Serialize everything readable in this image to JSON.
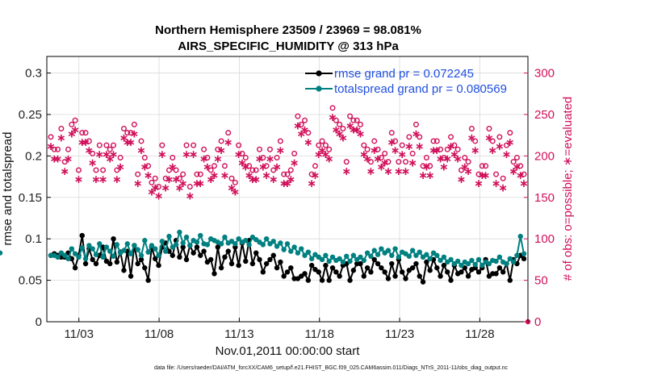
{
  "colors": {
    "rmse": "#000000",
    "spread": "#008080",
    "obs": "#d0105a",
    "legend_text": "#1f4fe0"
  },
  "chart_data": {
    "type": "line",
    "title": "Northern Hemisphere 23509 / 23969 = 98.081%",
    "subtitle": "AIRS_SPECIFIC_HUMIDITY @ 313 hPa",
    "xlabel": "Nov.01,2011 00:00:00 start",
    "ylabel": "rmse and totalspread",
    "ylabel_right": "# of obs: o=possible; ∗=evaluated",
    "footer": "data file: /Users/raeder/DAI/ATM_forcXX/CAM6_setup/f.e21.FHIST_BGC.f09_025.CAM6assim.011/Diags_NTrS_2011-11/obs_diag_output.nc",
    "xlim": [
      1.0,
      31.0
    ],
    "ylim": [
      0,
      0.32
    ],
    "ylim_right": [
      0,
      320
    ],
    "x_ticks": [
      3,
      8,
      13,
      18,
      23,
      28
    ],
    "x_tick_labels": [
      "11/03",
      "11/08",
      "11/13",
      "11/18",
      "11/23",
      "11/28"
    ],
    "y_ticks": [
      0,
      0.05,
      0.1,
      0.15,
      0.2,
      0.25,
      0.3
    ],
    "y_tick_labels": [
      "0",
      "0.05",
      "0.1",
      "0.15",
      "0.2",
      "0.25",
      "0.3"
    ],
    "y_ticks_right": [
      0,
      50,
      100,
      150,
      200,
      250,
      300
    ],
    "y_tick_labels_right": [
      "0",
      "50",
      "100",
      "150",
      "200",
      "250",
      "300"
    ],
    "legend_position": "top-right",
    "series": [
      {
        "name": "rmse grand pr = 0.072245",
        "values": [
          0.08,
          0.082,
          0.08,
          0.078,
          0.078,
          0.083,
          0.076,
          0.065,
          0.08,
          0.104,
          0.07,
          0.088,
          0.075,
          0.07,
          0.08,
          0.09,
          0.073,
          0.07,
          0.1,
          0.072,
          0.084,
          0.062,
          0.085,
          0.055,
          0.092,
          0.07,
          0.075,
          0.065,
          0.05,
          0.09,
          0.076,
          0.068,
          0.09,
          0.095,
          0.085,
          0.08,
          0.098,
          0.078,
          0.09,
          0.075,
          0.092,
          0.083,
          0.09,
          0.08,
          0.085,
          0.072,
          0.075,
          0.058,
          0.09,
          0.065,
          0.078,
          0.085,
          0.07,
          0.09,
          0.068,
          0.095,
          0.073,
          0.098,
          0.07,
          0.083,
          0.075,
          0.06,
          0.07,
          0.075,
          0.08,
          0.065,
          0.072,
          0.055,
          0.06,
          0.065,
          0.052,
          0.052,
          0.055,
          0.058,
          0.05,
          0.068,
          0.063,
          0.06,
          0.05,
          0.068,
          0.05,
          0.065,
          0.06,
          0.055,
          0.068,
          0.07,
          0.05,
          0.062,
          0.07,
          0.07,
          0.055,
          0.065,
          0.06,
          0.075,
          0.07,
          0.065,
          0.06,
          0.052,
          0.07,
          0.055,
          0.075,
          0.06,
          0.052,
          0.062,
          0.065,
          0.07,
          0.055,
          0.048,
          0.072,
          0.062,
          0.075,
          0.065,
          0.055,
          0.068,
          0.06,
          0.05,
          0.068,
          0.058,
          0.06,
          0.065,
          0.055,
          0.063,
          0.065,
          0.06,
          0.065,
          0.075,
          0.055,
          0.058,
          0.058,
          0.065,
          0.06,
          0.07,
          0.05,
          0.075,
          0.07,
          0.08,
          0.076
        ]
      },
      {
        "name": "totalspread grand pr = 0.080569",
        "values": [
          0.08,
          0.08,
          0.078,
          0.083,
          0.08,
          0.076,
          0.088,
          0.082,
          0.078,
          0.089,
          0.076,
          0.092,
          0.088,
          0.081,
          0.094,
          0.078,
          0.09,
          0.085,
          0.079,
          0.093,
          0.083,
          0.086,
          0.094,
          0.082,
          0.092,
          0.087,
          0.08,
          0.098,
          0.084,
          0.092,
          0.088,
          0.08,
          0.097,
          0.085,
          0.103,
          0.09,
          0.093,
          0.108,
          0.095,
          0.102,
          0.092,
          0.098,
          0.096,
          0.104,
          0.094,
          0.093,
          0.1,
          0.098,
          0.096,
          0.094,
          0.102,
          0.095,
          0.097,
          0.094,
          0.1,
          0.096,
          0.098,
          0.093,
          0.102,
          0.099,
          0.096,
          0.093,
          0.1,
          0.094,
          0.097,
          0.091,
          0.095,
          0.087,
          0.094,
          0.085,
          0.09,
          0.083,
          0.088,
          0.08,
          0.084,
          0.076,
          0.081,
          0.078,
          0.075,
          0.08,
          0.073,
          0.078,
          0.074,
          0.076,
          0.072,
          0.079,
          0.073,
          0.08,
          0.075,
          0.078,
          0.074,
          0.083,
          0.079,
          0.086,
          0.081,
          0.088,
          0.083,
          0.086,
          0.08,
          0.088,
          0.078,
          0.084,
          0.082,
          0.079,
          0.086,
          0.08,
          0.084,
          0.078,
          0.081,
          0.076,
          0.083,
          0.08,
          0.074,
          0.078,
          0.072,
          0.075,
          0.07,
          0.073,
          0.068,
          0.072,
          0.07,
          0.074,
          0.069,
          0.075,
          0.068,
          0.072,
          0.07,
          0.074,
          0.073,
          0.078,
          0.072,
          0.07,
          0.076,
          0.072,
          0.08,
          0.103,
          0.082,
          0.083
        ]
      },
      {
        "name": "# obs possible",
        "values": [
          220,
          205,
          205,
          230,
          190,
          205,
          235,
          240,
          180,
          225,
          225,
          215,
          200,
          180,
          210,
          180,
          210,
          205,
          210,
          180,
          195,
          230,
          225,
          225,
          235,
          175,
          215,
          195,
          185,
          165,
          170,
          160,
          210,
          170,
          180,
          195,
          180,
          170,
          175,
          210,
          160,
          210,
          175,
          175,
          205,
          195,
          180,
          185,
          205,
          215,
          185,
          225,
          170,
          165,
          210,
          200,
          195,
          185,
          180,
          180,
          205,
          195,
          185,
          205,
          180,
          195,
          215,
          175,
          175,
          180,
          200,
          245,
          235,
          240,
          225,
          175,
          185,
          210,
          215,
          210,
          205,
          255,
          240,
          235,
          230,
          190,
          245,
          240,
          240,
          235,
          210,
          205,
          190,
          215,
          205,
          195,
          200,
          190,
          225,
          215,
          190,
          210,
          190,
          220,
          200,
          235,
          220,
          185,
          195,
          185,
          215,
          215,
          205,
          195,
          205,
          220,
          210,
          205,
          180,
          195,
          190,
          230,
          215,
          175,
          185,
          185,
          230,
          215,
          175,
          220,
          170,
          210,
          225,
          190,
          195,
          185,
          175,
          175,
          210
        ]
      },
      {
        "name": "# obs evaluated",
        "values": [
          215,
          200,
          200,
          225,
          185,
          200,
          230,
          235,
          175,
          220,
          220,
          210,
          195,
          175,
          205,
          175,
          205,
          200,
          205,
          175,
          190,
          225,
          220,
          220,
          230,
          170,
          210,
          190,
          180,
          160,
          165,
          155,
          205,
          165,
          175,
          190,
          175,
          165,
          170,
          205,
          155,
          205,
          170,
          170,
          200,
          190,
          175,
          180,
          200,
          210,
          180,
          220,
          165,
          160,
          205,
          195,
          190,
          180,
          175,
          175,
          200,
          190,
          180,
          200,
          175,
          190,
          210,
          170,
          170,
          175,
          195,
          240,
          230,
          235,
          220,
          170,
          180,
          205,
          210,
          205,
          200,
          250,
          235,
          230,
          225,
          185,
          240,
          235,
          235,
          230,
          205,
          200,
          185,
          210,
          200,
          190,
          195,
          185,
          220,
          210,
          185,
          205,
          185,
          215,
          195,
          230,
          215,
          180,
          190,
          180,
          210,
          210,
          200,
          190,
          200,
          215,
          205,
          200,
          175,
          190,
          185,
          225,
          210,
          170,
          180,
          180,
          225,
          210,
          170,
          215,
          165,
          205,
          220,
          185,
          190,
          180,
          170,
          170,
          205
        ]
      }
    ]
  }
}
